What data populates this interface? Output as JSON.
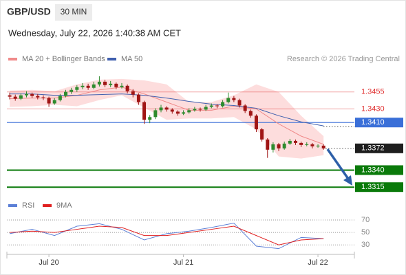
{
  "header": {
    "symbol": "GBP/USD",
    "timeframe": "30 MIN",
    "datetime": "Wednesday, July 22, 2026 1:40:38 AM CET",
    "source": "Research © 2026 Trading Central"
  },
  "chart_data": [
    {
      "type": "candlestick",
      "up_color": "#2e8b2e",
      "down_color": "#a01515",
      "candles": [
        [
          1.345,
          1.3454,
          1.3444,
          1.3448
        ],
        [
          1.3448,
          1.3451,
          1.3442,
          1.3445
        ],
        [
          1.3445,
          1.3453,
          1.3443,
          1.345
        ],
        [
          1.345,
          1.3456,
          1.3447,
          1.3452
        ],
        [
          1.3452,
          1.3454,
          1.3446,
          1.3449
        ],
        [
          1.3449,
          1.3452,
          1.3444,
          1.3447
        ],
        [
          1.3447,
          1.345,
          1.3443,
          1.3446
        ],
        [
          1.3446,
          1.3448,
          1.3433,
          1.3438
        ],
        [
          1.3438,
          1.3446,
          1.3436,
          1.3443
        ],
        [
          1.3443,
          1.3452,
          1.3441,
          1.3449
        ],
        [
          1.3449,
          1.3458,
          1.3447,
          1.3455
        ],
        [
          1.3455,
          1.3461,
          1.3452,
          1.3458
        ],
        [
          1.3458,
          1.3465,
          1.3455,
          1.3462
        ],
        [
          1.3462,
          1.3468,
          1.3459,
          1.3464
        ],
        [
          1.3464,
          1.3467,
          1.3458,
          1.3461
        ],
        [
          1.3461,
          1.347,
          1.3459,
          1.3466
        ],
        [
          1.3466,
          1.3478,
          1.3463,
          1.347
        ],
        [
          1.347,
          1.3473,
          1.3462,
          1.3465
        ],
        [
          1.3465,
          1.3471,
          1.3462,
          1.3467
        ],
        [
          1.3467,
          1.3469,
          1.3459,
          1.3462
        ],
        [
          1.3462,
          1.3468,
          1.346,
          1.3464
        ],
        [
          1.3464,
          1.3466,
          1.3453,
          1.3456
        ],
        [
          1.3456,
          1.3459,
          1.3447,
          1.3451
        ],
        [
          1.3451,
          1.3453,
          1.3436,
          1.344
        ],
        [
          1.344,
          1.3442,
          1.3408,
          1.3414
        ],
        [
          1.3414,
          1.3421,
          1.3409,
          1.3418
        ],
        [
          1.3418,
          1.3431,
          1.3415,
          1.3428
        ],
        [
          1.3428,
          1.3436,
          1.3425,
          1.3432
        ],
        [
          1.3432,
          1.3434,
          1.3426,
          1.3429
        ],
        [
          1.3429,
          1.3431,
          1.3423,
          1.3426
        ],
        [
          1.3426,
          1.3428,
          1.342,
          1.3423
        ],
        [
          1.3423,
          1.3428,
          1.3421,
          1.3425
        ],
        [
          1.3425,
          1.3431,
          1.3423,
          1.3428
        ],
        [
          1.3428,
          1.3433,
          1.3426,
          1.343
        ],
        [
          1.343,
          1.3432,
          1.3426,
          1.3429
        ],
        [
          1.3429,
          1.3436,
          1.3427,
          1.3433
        ],
        [
          1.3433,
          1.3438,
          1.3431,
          1.3435
        ],
        [
          1.3435,
          1.3437,
          1.3431,
          1.3434
        ],
        [
          1.3434,
          1.3443,
          1.3432,
          1.344
        ],
        [
          1.344,
          1.3454,
          1.3438,
          1.3446
        ],
        [
          1.3446,
          1.3449,
          1.344,
          1.3443
        ],
        [
          1.3443,
          1.3445,
          1.3432,
          1.3435
        ],
        [
          1.3435,
          1.3437,
          1.3424,
          1.3427
        ],
        [
          1.3427,
          1.3429,
          1.3417,
          1.342
        ],
        [
          1.342,
          1.3422,
          1.3396,
          1.34
        ],
        [
          1.34,
          1.3402,
          1.3382,
          1.3385
        ],
        [
          1.3385,
          1.3387,
          1.3358,
          1.337
        ],
        [
          1.337,
          1.3381,
          1.3366,
          1.3378
        ],
        [
          1.3378,
          1.338,
          1.3368,
          1.3372
        ],
        [
          1.3372,
          1.3382,
          1.337,
          1.3379
        ],
        [
          1.3379,
          1.3386,
          1.3377,
          1.3383
        ],
        [
          1.3383,
          1.3385,
          1.3377,
          1.338
        ],
        [
          1.338,
          1.3382,
          1.3374,
          1.3377
        ],
        [
          1.3377,
          1.3381,
          1.3375,
          1.3378
        ],
        [
          1.3378,
          1.338,
          1.3372,
          1.3375
        ],
        [
          1.3375,
          1.3378,
          1.3373,
          1.3376
        ],
        [
          1.3376,
          1.3378,
          1.337,
          1.3372
        ]
      ],
      "xlim": [
        -0.5,
        61.5
      ],
      "ylim": [
        1.3297,
        1.3484
      ],
      "xticks": [
        {
          "value": 7,
          "label": "Jul 20"
        },
        {
          "value": 31,
          "label": "Jul 21"
        },
        {
          "value": 55,
          "label": "Jul 22"
        }
      ],
      "x": [
        0,
        4,
        8,
        12,
        16,
        20,
        24,
        28,
        32,
        36,
        40,
        44,
        48,
        52,
        56
      ],
      "bands": {
        "color": "#fcd5d5",
        "upper": [
          1.3457,
          1.3458,
          1.3456,
          1.3466,
          1.3473,
          1.3474,
          1.3472,
          1.3466,
          1.344,
          1.344,
          1.345,
          1.3466,
          1.3455,
          1.342,
          1.339
        ],
        "lower": [
          1.3433,
          1.3434,
          1.3436,
          1.3434,
          1.3443,
          1.345,
          1.3432,
          1.3414,
          1.3416,
          1.3416,
          1.3418,
          1.34,
          1.336,
          1.3357,
          1.3362
        ]
      },
      "series": [
        {
          "name": "MA 20 + Bollinger Bands",
          "color": "#f08a8a",
          "values": [
            1.3445,
            1.3446,
            1.3446,
            1.345,
            1.3458,
            1.3462,
            1.3452,
            1.344,
            1.3428,
            1.3428,
            1.3434,
            1.343,
            1.3408,
            1.339,
            1.3378
          ]
        },
        {
          "name": "MA 50",
          "color": "#3f5fae",
          "values": [
            1.3452,
            1.3452,
            1.345,
            1.345,
            1.3451,
            1.3452,
            1.345,
            1.3446,
            1.3441,
            1.3437,
            1.3435,
            1.3431,
            1.342,
            1.3411,
            1.3405
          ]
        }
      ],
      "levels": [
        {
          "value": 1.3455,
          "label": "1.3455",
          "color": "#e03030",
          "style": "text"
        },
        {
          "value": 1.343,
          "label": "1.3430",
          "color": "#e03030",
          "style": "text"
        },
        {
          "value": 1.341,
          "label": "1.3410",
          "color": "#3a6fd8",
          "style": "box"
        },
        {
          "value": 1.3372,
          "label": "1.3372",
          "color": "#1e1e1e",
          "style": "current"
        },
        {
          "value": 1.334,
          "label": "1.3340",
          "color": "#0a7a0a",
          "style": "box"
        },
        {
          "value": 1.3315,
          "label": "1.3315",
          "color": "#0a7a0a",
          "style": "box"
        }
      ]
    },
    {
      "type": "line",
      "xlim": [
        -0.5,
        61.5
      ],
      "ylim": [
        17,
        81
      ],
      "yticks": [
        70,
        50,
        30
      ],
      "x": [
        0,
        4,
        8,
        12,
        16,
        20,
        24,
        28,
        32,
        36,
        40,
        44,
        48,
        52,
        56
      ],
      "series": [
        {
          "name": "RSI",
          "color": "#5b7fd6",
          "values": [
            48,
            55,
            45,
            60,
            64,
            55,
            38,
            48,
            52,
            58,
            65,
            28,
            24,
            42,
            40
          ]
        },
        {
          "name": "9MA",
          "color": "#e02020",
          "values": [
            50,
            52,
            50,
            55,
            60,
            58,
            45,
            45,
            50,
            55,
            60,
            45,
            30,
            38,
            40
          ]
        }
      ]
    }
  ]
}
